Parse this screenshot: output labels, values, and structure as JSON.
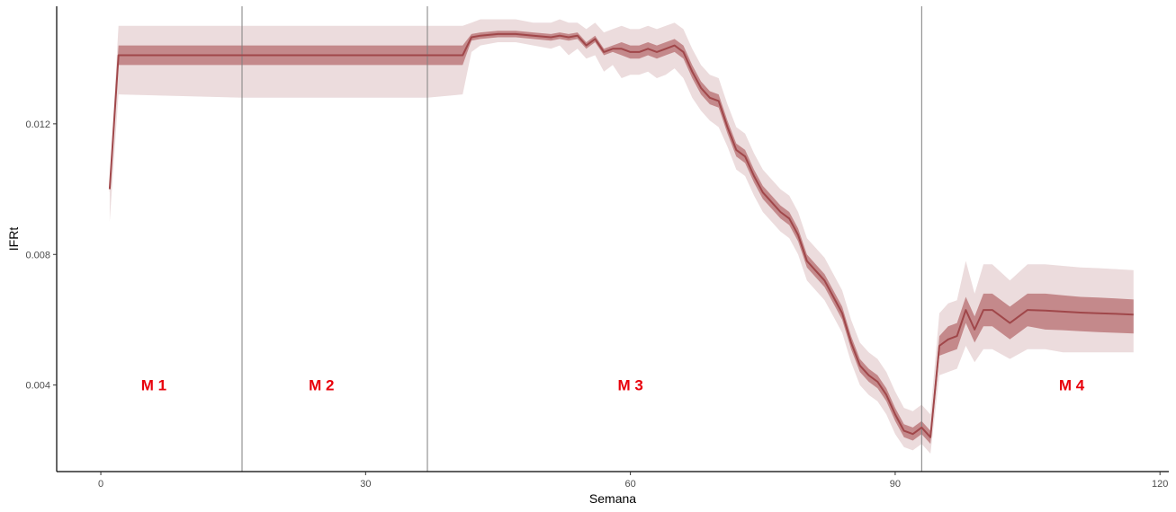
{
  "chart_data": {
    "type": "line",
    "xlabel": "Semana",
    "ylabel": "IFRt",
    "xlim": [
      -5,
      121
    ],
    "ylim": [
      0.00135,
      0.0156
    ],
    "x_ticks": [
      {
        "value": 0,
        "label": "0"
      },
      {
        "value": 30,
        "label": "30"
      },
      {
        "value": 60,
        "label": "60"
      },
      {
        "value": 90,
        "label": "90"
      },
      {
        "value": 120,
        "label": "120"
      }
    ],
    "y_ticks": [
      {
        "value": 0.004,
        "label": "0.004"
      },
      {
        "value": 0.008,
        "label": "0.008"
      },
      {
        "value": 0.012,
        "label": "0.012"
      }
    ],
    "grid": false,
    "legend": "none",
    "colors": {
      "line": "#a0474a",
      "inner_band": "#c4898b",
      "outer_band": "#ecdcdd",
      "vline": "#7f7f7f",
      "region_label": "#e8000b"
    },
    "vertical_lines": [
      16,
      37,
      93
    ],
    "region_labels": [
      {
        "x": 6,
        "y": 0.004,
        "label": "M 1"
      },
      {
        "x": 25,
        "y": 0.004,
        "label": "M 2"
      },
      {
        "x": 60,
        "y": 0.004,
        "label": "M 3"
      },
      {
        "x": 110,
        "y": 0.004,
        "label": "M 4"
      }
    ],
    "series": [
      {
        "x": [
          1,
          2,
          16,
          37,
          41,
          42,
          43,
          45,
          47,
          49,
          51,
          52,
          53,
          54,
          55,
          56,
          57,
          58,
          59,
          60,
          61,
          62,
          63,
          64,
          65,
          66,
          67,
          68,
          69,
          70,
          71,
          72,
          73,
          74,
          75,
          76,
          77,
          78,
          79,
          80,
          81,
          82,
          83,
          84,
          85,
          86,
          87,
          88,
          89,
          90,
          91,
          92,
          93,
          94,
          95,
          96,
          97,
          98,
          99,
          100,
          101,
          103,
          105,
          107,
          109,
          111,
          113,
          115,
          117
        ],
        "y": [
          0.01,
          0.0141,
          0.0141,
          0.0141,
          0.0141,
          0.01465,
          0.0147,
          0.01475,
          0.01475,
          0.0147,
          0.01465,
          0.0147,
          0.01465,
          0.0147,
          0.0144,
          0.0146,
          0.0142,
          0.0143,
          0.0143,
          0.0142,
          0.0142,
          0.0143,
          0.0142,
          0.0143,
          0.0144,
          0.0142,
          0.0136,
          0.0131,
          0.0128,
          0.0127,
          0.0119,
          0.0112,
          0.011,
          0.0104,
          0.0099,
          0.0096,
          0.0093,
          0.0091,
          0.0086,
          0.0078,
          0.0075,
          0.0072,
          0.0067,
          0.0062,
          0.0053,
          0.0046,
          0.0043,
          0.0041,
          0.0037,
          0.0031,
          0.0026,
          0.0025,
          0.0027,
          0.0024,
          0.0052,
          0.0054,
          0.0055,
          0.0063,
          0.0057,
          0.0063,
          0.0063,
          0.0059,
          0.0063,
          0.00628,
          0.00625,
          0.00622,
          0.0062,
          0.00618,
          0.00616
        ],
        "inner_lower": [
          0.0099,
          0.0138,
          0.0138,
          0.0138,
          0.0138,
          0.01455,
          0.0146,
          0.01465,
          0.01465,
          0.0146,
          0.01455,
          0.0146,
          0.01455,
          0.0146,
          0.0143,
          0.0145,
          0.0141,
          0.0142,
          0.0141,
          0.014,
          0.014,
          0.0141,
          0.014,
          0.0141,
          0.0142,
          0.014,
          0.0134,
          0.0129,
          0.0126,
          0.0125,
          0.0117,
          0.011,
          0.0108,
          0.0102,
          0.0097,
          0.0094,
          0.0091,
          0.0089,
          0.0084,
          0.0076,
          0.0073,
          0.007,
          0.0065,
          0.006,
          0.0051,
          0.0044,
          0.0041,
          0.0039,
          0.0035,
          0.0029,
          0.0024,
          0.0023,
          0.0025,
          0.0022,
          0.0049,
          0.005,
          0.0051,
          0.0059,
          0.0053,
          0.0058,
          0.0058,
          0.0054,
          0.0058,
          0.0057,
          0.00568,
          0.00565,
          0.00562,
          0.0056,
          0.00558
        ],
        "inner_upper": [
          0.0101,
          0.0144,
          0.0144,
          0.0144,
          0.0144,
          0.01475,
          0.0148,
          0.01485,
          0.01485,
          0.0148,
          0.01475,
          0.0148,
          0.01475,
          0.0148,
          0.0145,
          0.0147,
          0.0143,
          0.0144,
          0.0145,
          0.0144,
          0.0144,
          0.0145,
          0.0144,
          0.0145,
          0.0146,
          0.0144,
          0.0138,
          0.0133,
          0.013,
          0.0129,
          0.0121,
          0.0114,
          0.0112,
          0.0106,
          0.0101,
          0.0098,
          0.0095,
          0.0093,
          0.0088,
          0.008,
          0.0077,
          0.0074,
          0.0069,
          0.0064,
          0.0055,
          0.0048,
          0.0045,
          0.0043,
          0.0039,
          0.0033,
          0.0028,
          0.0027,
          0.0029,
          0.0026,
          0.0055,
          0.0058,
          0.0059,
          0.0067,
          0.0061,
          0.0068,
          0.0068,
          0.0064,
          0.0068,
          0.0068,
          0.00675,
          0.0067,
          0.00668,
          0.00665,
          0.00662
        ],
        "outer_lower": [
          0.009,
          0.0129,
          0.0128,
          0.0128,
          0.0129,
          0.0142,
          0.0144,
          0.0145,
          0.0145,
          0.0144,
          0.0143,
          0.0144,
          0.0141,
          0.0143,
          0.014,
          0.0141,
          0.0136,
          0.0138,
          0.0134,
          0.0135,
          0.0135,
          0.0136,
          0.0134,
          0.0135,
          0.0137,
          0.0134,
          0.0128,
          0.0124,
          0.0121,
          0.0119,
          0.0113,
          0.0106,
          0.0104,
          0.0098,
          0.0093,
          0.009,
          0.0087,
          0.0085,
          0.008,
          0.0072,
          0.0069,
          0.0066,
          0.0061,
          0.0056,
          0.0047,
          0.004,
          0.0037,
          0.0035,
          0.0031,
          0.0025,
          0.0021,
          0.002,
          0.0022,
          0.0019,
          0.0043,
          0.0044,
          0.0045,
          0.0052,
          0.0047,
          0.0051,
          0.0051,
          0.0048,
          0.0051,
          0.0051,
          0.005,
          0.005,
          0.005,
          0.005,
          0.005
        ],
        "outer_upper": [
          0.0102,
          0.015,
          0.015,
          0.015,
          0.015,
          0.0151,
          0.0152,
          0.0152,
          0.0152,
          0.0151,
          0.0151,
          0.0152,
          0.0151,
          0.0151,
          0.0149,
          0.0151,
          0.0148,
          0.0149,
          0.015,
          0.0149,
          0.0149,
          0.015,
          0.0149,
          0.015,
          0.0151,
          0.0149,
          0.0143,
          0.0138,
          0.0135,
          0.0134,
          0.0126,
          0.0119,
          0.0117,
          0.0111,
          0.0106,
          0.0103,
          0.01,
          0.0098,
          0.0093,
          0.0085,
          0.0082,
          0.0079,
          0.0074,
          0.0069,
          0.006,
          0.0053,
          0.005,
          0.0048,
          0.0044,
          0.0038,
          0.0033,
          0.0032,
          0.0034,
          0.0031,
          0.0062,
          0.0065,
          0.0066,
          0.0078,
          0.0068,
          0.0077,
          0.0077,
          0.0072,
          0.0077,
          0.0077,
          0.00765,
          0.0076,
          0.00758,
          0.00755,
          0.00752
        ]
      }
    ]
  }
}
